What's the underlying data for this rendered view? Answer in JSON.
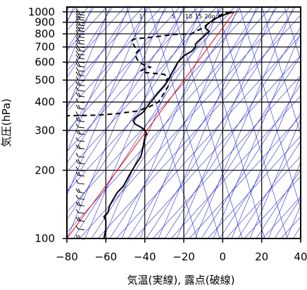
{
  "chart_data": {
    "type": "line",
    "title": "",
    "xlabel": "気温(実線), 露点(破線)",
    "ylabel": "気圧(hPa)",
    "xlim": [
      -80,
      40
    ],
    "ylim_hPa": [
      1050,
      100
    ],
    "y_scale": "log",
    "grid": true,
    "x_ticks": [
      -80,
      -60,
      -40,
      -20,
      0,
      20,
      40
    ],
    "x_tick_labels": [
      "−80",
      "−60",
      "−40",
      "−20",
      "0",
      "20",
      "40"
    ],
    "y_ticks": [
      100,
      200,
      300,
      400,
      500,
      600,
      700,
      800,
      900,
      1000
    ],
    "y_tick_labels": [
      "100",
      "200",
      "300",
      "400",
      "500",
      "600",
      "700",
      "800",
      "900",
      "1000"
    ],
    "mixing_ratio_labels": [
      {
        "text": "1",
        "value": 1
      },
      {
        "text": "5",
        "value": 5
      },
      {
        "text": "10",
        "value": 10
      },
      {
        "text": "15",
        "value": 15
      },
      {
        "text": "20g",
        "value": 20
      }
    ],
    "colors": {
      "temperature": "#000000",
      "dewpoint": "#000000",
      "parcel": "#ff0000",
      "background_lines": "#2a2ad8",
      "grid": "#000000",
      "wind_barbs": "#000000"
    },
    "series": [
      {
        "style": "solid",
        "points": [
          {
            "p": 1000,
            "t": 6
          },
          {
            "p": 980,
            "t": 2
          },
          {
            "p": 950,
            "t": -2
          },
          {
            "p": 920,
            "t": -5
          },
          {
            "p": 880,
            "t": -8
          },
          {
            "p": 850,
            "t": -9
          },
          {
            "p": 820,
            "t": -7
          },
          {
            "p": 790,
            "t": -9
          },
          {
            "p": 750,
            "t": -12
          },
          {
            "p": 720,
            "t": -14
          },
          {
            "p": 700,
            "t": -14
          },
          {
            "p": 670,
            "t": -16
          },
          {
            "p": 640,
            "t": -20
          },
          {
            "p": 600,
            "t": -23
          },
          {
            "p": 560,
            "t": -25
          },
          {
            "p": 520,
            "t": -27
          },
          {
            "p": 500,
            "t": -28
          },
          {
            "p": 470,
            "t": -30
          },
          {
            "p": 440,
            "t": -33
          },
          {
            "p": 400,
            "t": -37
          },
          {
            "p": 360,
            "t": -41
          },
          {
            "p": 340,
            "t": -45
          },
          {
            "p": 330,
            "t": -46
          },
          {
            "p": 320,
            "t": -45
          },
          {
            "p": 310,
            "t": -42
          },
          {
            "p": 300,
            "t": -40
          },
          {
            "p": 290,
            "t": -39
          },
          {
            "p": 280,
            "t": -40
          },
          {
            "p": 250,
            "t": -41
          },
          {
            "p": 230,
            "t": -42
          },
          {
            "p": 210,
            "t": -45
          },
          {
            "p": 190,
            "t": -48
          },
          {
            "p": 170,
            "t": -51
          },
          {
            "p": 160,
            "t": -54
          },
          {
            "p": 150,
            "t": -56
          },
          {
            "p": 140,
            "t": -58
          },
          {
            "p": 130,
            "t": -59
          },
          {
            "p": 125,
            "t": -61
          },
          {
            "p": 120,
            "t": -60
          },
          {
            "p": 110,
            "t": -60
          },
          {
            "p": 100,
            "t": -61
          }
        ]
      },
      {
        "style": "dashed",
        "points": [
          {
            "p": 1000,
            "t": 4
          },
          {
            "p": 980,
            "t": 0
          },
          {
            "p": 950,
            "t": -3
          },
          {
            "p": 920,
            "t": -5
          },
          {
            "p": 900,
            "t": -6
          },
          {
            "p": 880,
            "t": -8
          },
          {
            "p": 850,
            "t": -10
          },
          {
            "p": 820,
            "t": -14
          },
          {
            "p": 800,
            "t": -16
          },
          {
            "p": 795,
            "t": -25
          },
          {
            "p": 785,
            "t": -30
          },
          {
            "p": 770,
            "t": -38
          },
          {
            "p": 760,
            "t": -45
          },
          {
            "p": 745,
            "t": -47
          },
          {
            "p": 700,
            "t": -45
          },
          {
            "p": 680,
            "t": -43
          },
          {
            "p": 650,
            "t": -45
          },
          {
            "p": 620,
            "t": -44
          },
          {
            "p": 600,
            "t": -43
          },
          {
            "p": 580,
            "t": -40
          },
          {
            "p": 570,
            "t": -37
          },
          {
            "p": 560,
            "t": -40
          },
          {
            "p": 550,
            "t": -42
          },
          {
            "p": 540,
            "t": -40
          },
          {
            "p": 530,
            "t": -30
          },
          {
            "p": 520,
            "t": -29
          },
          {
            "p": 510,
            "t": -28
          },
          {
            "p": 500,
            "t": -29
          },
          {
            "p": 470,
            "t": -28
          },
          {
            "p": 440,
            "t": -30
          },
          {
            "p": 400,
            "t": -33
          },
          {
            "p": 380,
            "t": -38
          },
          {
            "p": 365,
            "t": -44
          },
          {
            "p": 355,
            "t": -55
          },
          {
            "p": 350,
            "t": -65
          },
          {
            "p": 348,
            "t": -80
          }
        ]
      },
      {
        "style": "parcel",
        "points": [
          {
            "p": 1000,
            "t": 6
          },
          {
            "p": 100,
            "t": -80
          }
        ]
      }
    ],
    "wind_barbs_levels_hPa": [
      100,
      110,
      120,
      130,
      140,
      150,
      160,
      175,
      190,
      200,
      215,
      230,
      250,
      270,
      290,
      310,
      330,
      350,
      375,
      400,
      425,
      450,
      475,
      500,
      525,
      550,
      575,
      600,
      625,
      650,
      675,
      700,
      725,
      750,
      775,
      800,
      825,
      850,
      875,
      900,
      925,
      950,
      975,
      1000
    ]
  }
}
